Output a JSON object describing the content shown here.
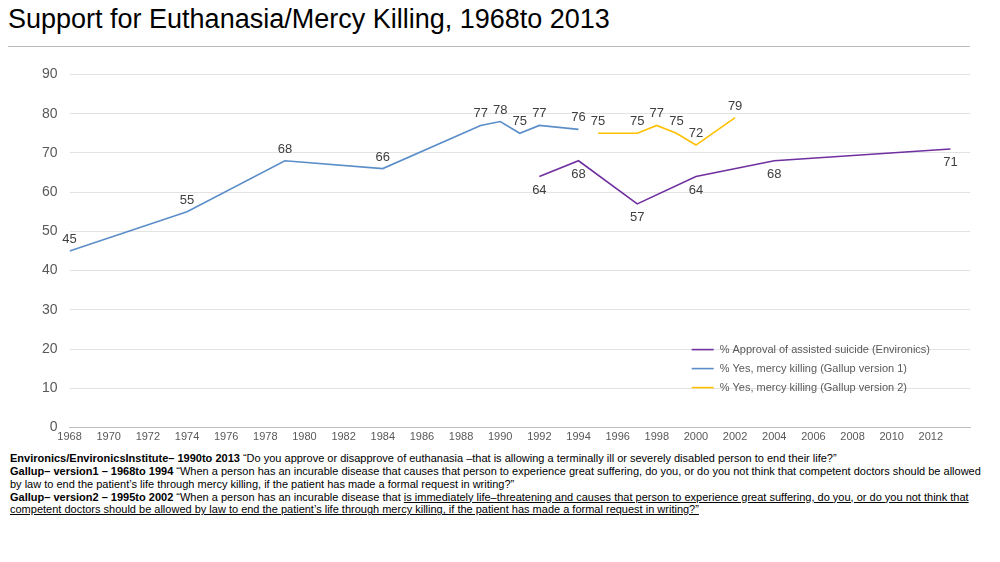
{
  "chart_data": {
    "type": "line",
    "title": "Support for Euthanasia/Mercy Killing, 1968to 2013",
    "series": [
      {
        "name": "% Approval of assisted suicide (Environics)",
        "color": "#7030a0",
        "x": [
          1992,
          1994,
          1997,
          2000,
          2004,
          2013
        ],
        "values": [
          64,
          68,
          57,
          64,
          68,
          71
        ]
      },
      {
        "name": "% Yes, mercy killing (Gallup version 1)",
        "color": "#5b8ec9",
        "x": [
          1968,
          1974,
          1979,
          1984,
          1989,
          1990,
          1991,
          1992,
          1994
        ],
        "values": [
          45,
          55,
          68,
          66,
          77,
          78,
          75,
          77,
          76
        ]
      },
      {
        "name": "% Yes, mercy killing (Gallup version 2)",
        "color": "#ffc000",
        "x": [
          1995,
          1997,
          1998,
          1999,
          2000,
          2002
        ],
        "values": [
          75,
          75,
          77,
          75,
          72,
          79
        ]
      }
    ],
    "xlim": [
      1968,
      2014
    ],
    "xticks": [
      1968,
      1970,
      1972,
      1974,
      1976,
      1978,
      1980,
      1982,
      1984,
      1986,
      1988,
      1990,
      1992,
      1994,
      1996,
      1998,
      2000,
      2002,
      2004,
      2006,
      2008,
      2010,
      2012
    ],
    "ylim": [
      0,
      90
    ],
    "yticks": [
      0,
      10,
      20,
      30,
      40,
      50,
      60,
      70,
      80,
      90
    ],
    "grid": "y",
    "legend": "lower right",
    "data_labels": true,
    "marker": "none",
    "notes": [
      {
        "source": "Environics/EnvironicsInstitute– 1990to 2013",
        "question": [
          {
            "text": "“Do you approve or disapprove of euthanasia –that is allowing a terminally ill or severely disabled person to end their life?”",
            "underline": false
          }
        ]
      },
      {
        "source": "Gallup– version1 – 1968to 1994",
        "question": [
          {
            "text": "“When a person has an incurable disease that causes that person to experience great suffering, do you, or do you not think that competent doctors should be allowed by law to end the patient’s life through mercy killing, if the patient has made a formal request in writing?”",
            "underline": false
          }
        ]
      },
      {
        "source": "Gallup– version2 – 1995to 2002",
        "question": [
          {
            "text": "“When a person has an incurable disease that ",
            "underline": false
          },
          {
            "text": "is immediately life–threatening and causes that person to experience great suffering, do you, or do you not think that competent doctors should be allowed by law to end the patient’s life through mercy killing, if the patient has made a formal request in writing?”",
            "underline": true
          }
        ]
      }
    ]
  }
}
